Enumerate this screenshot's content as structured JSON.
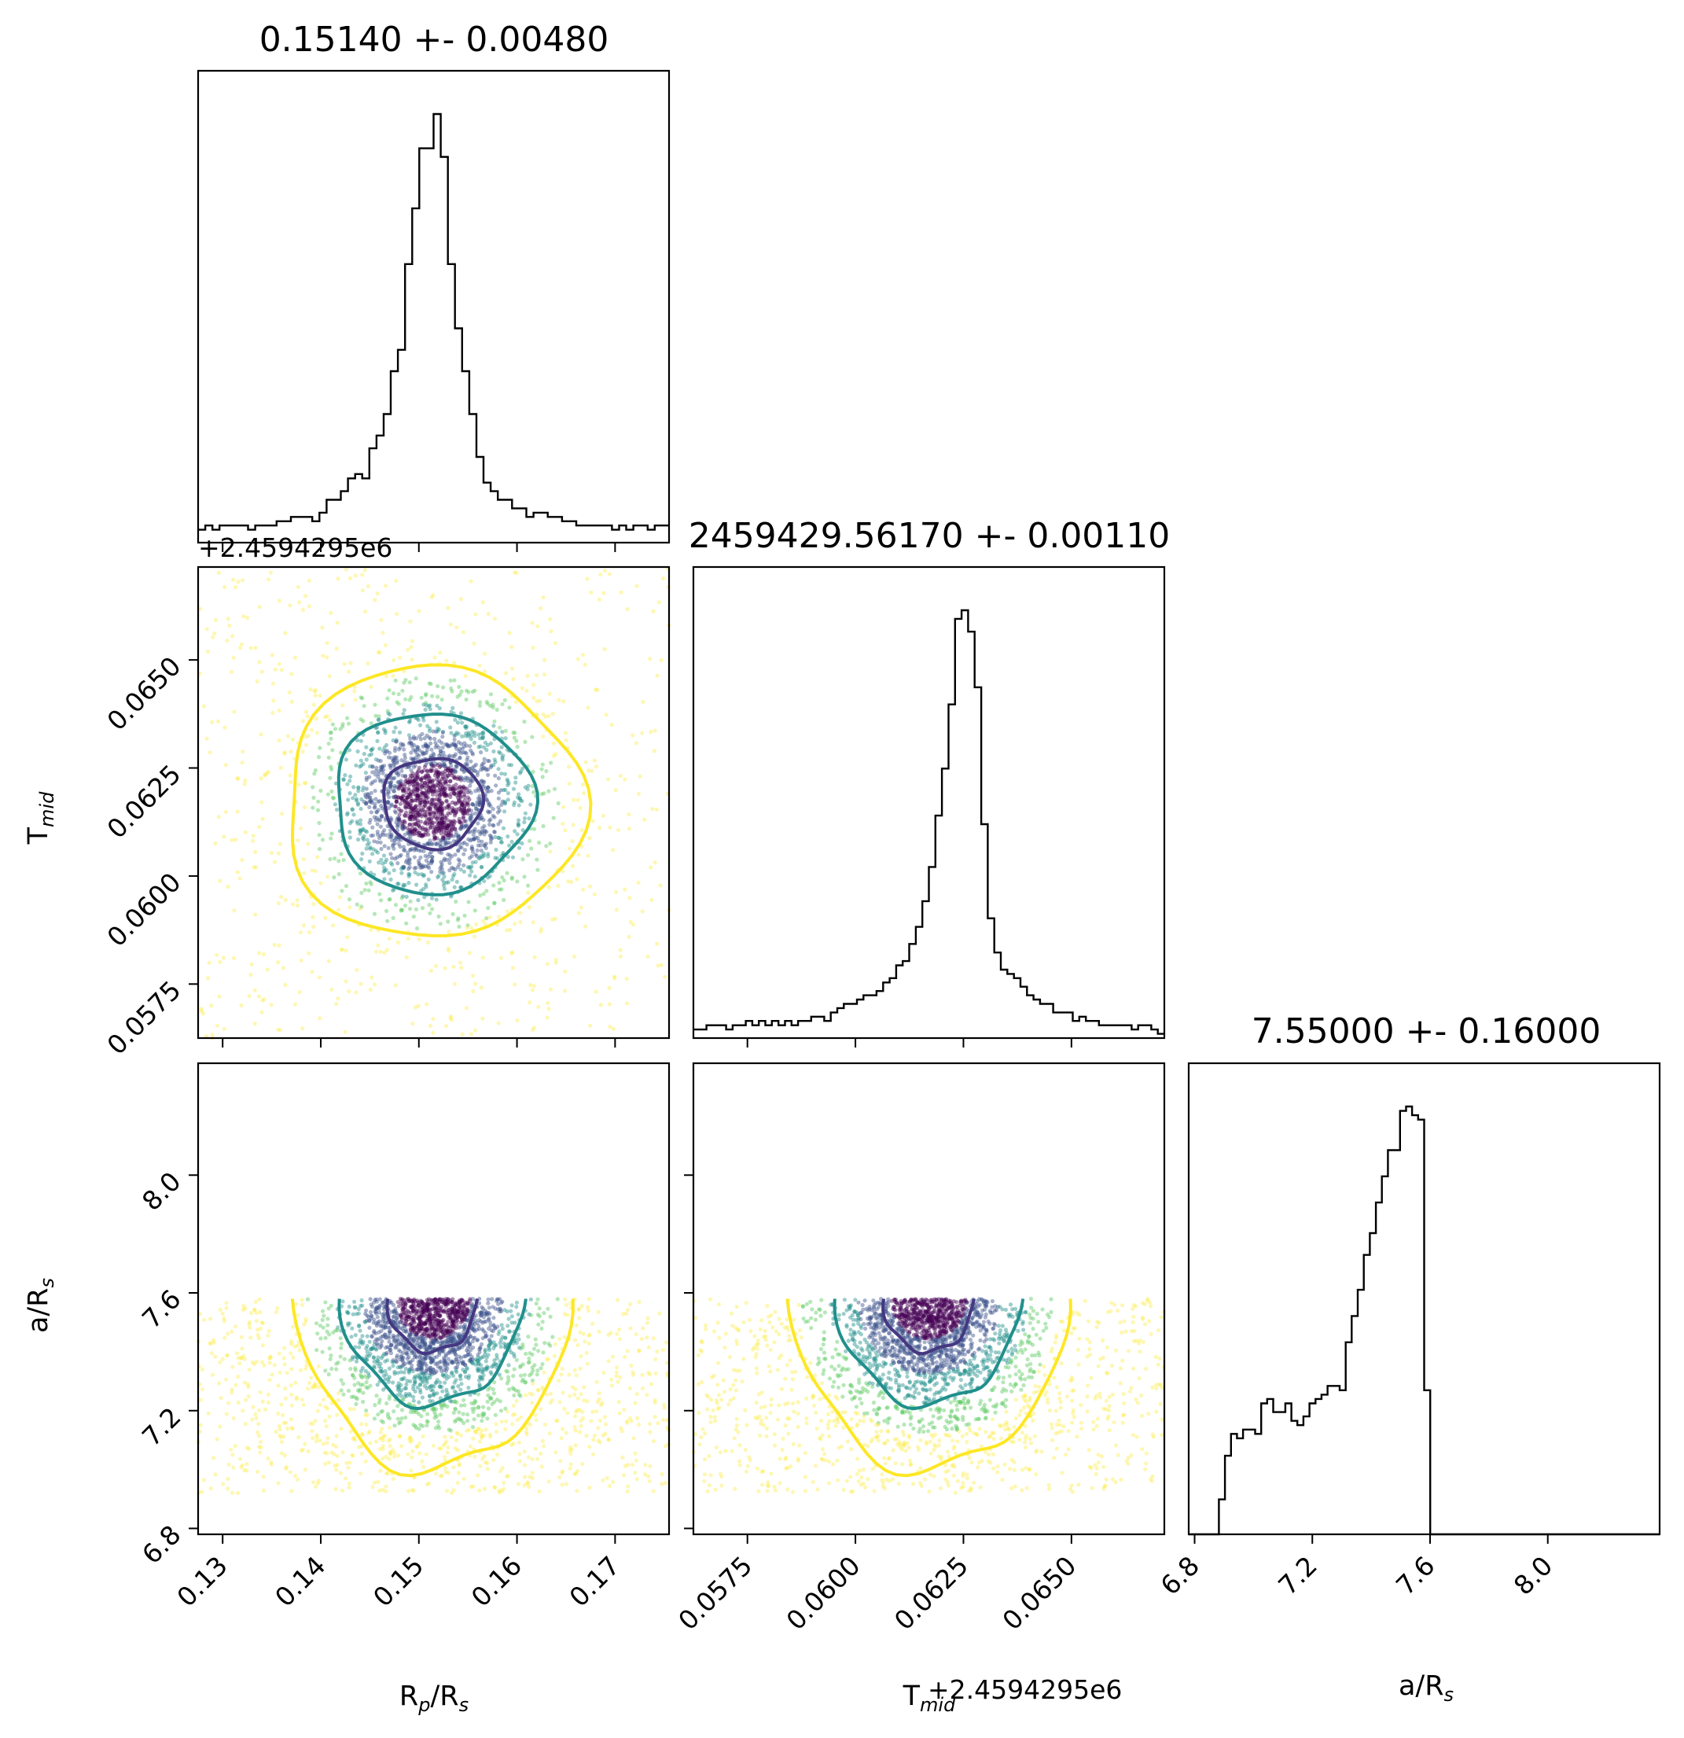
{
  "chart_data": {
    "type": "corner",
    "parameters": [
      {
        "key": "rprs",
        "title": "0.15140 +- 0.00480",
        "xlabel": "R_p/R_s",
        "range": [
          0.1275,
          0.1755
        ],
        "median": 0.1514,
        "sigma": 0.0048,
        "ticks": [
          0.13,
          0.14,
          0.15,
          0.16,
          0.17
        ],
        "tick_labels": [
          "0.13",
          "0.14",
          "0.15",
          "0.16",
          "0.17"
        ]
      },
      {
        "key": "tmid",
        "title": "2459429.56170 +- 0.00110",
        "xlabel": "T_mid",
        "ylabel": "T_mid",
        "offset": "+2.4594295e6",
        "range": [
          0.05625,
          0.06715
        ],
        "median": 0.0617,
        "sigma": 0.0011,
        "ticks": [
          0.0575,
          0.06,
          0.0625,
          0.065
        ],
        "tick_labels": [
          "0.0575",
          "0.0600",
          "0.0625",
          "0.0650"
        ]
      },
      {
        "key": "ars",
        "title": "7.55000 +- 0.16000",
        "xlabel": "a/R_s",
        "ylabel": "a/R_s",
        "range": [
          6.78,
          8.38
        ],
        "median": 7.55,
        "sigma": 0.16,
        "ticks": [
          6.8,
          7.2,
          7.6,
          8.0
        ],
        "tick_labels": [
          "6.8",
          "7.2",
          "7.6",
          "8.0"
        ]
      }
    ],
    "histograms": {
      "rprs": [
        3,
        4,
        3,
        4,
        4,
        4,
        4,
        3,
        4,
        4,
        4,
        5,
        5,
        6,
        6,
        6,
        5,
        7,
        10,
        10,
        12,
        15,
        16,
        15,
        22,
        25,
        30,
        40,
        45,
        65,
        78,
        92,
        92,
        100,
        90,
        65,
        50,
        40,
        30,
        20,
        14,
        12,
        10,
        10,
        8,
        8,
        6,
        7,
        7,
        6,
        6,
        5,
        5,
        4,
        4,
        4,
        4,
        4,
        3,
        4,
        3,
        4,
        4,
        3,
        4,
        4
      ],
      "tmid": [
        2,
        2,
        3,
        3,
        3,
        2,
        3,
        3,
        4,
        3,
        4,
        3,
        4,
        3,
        4,
        3,
        4,
        4,
        5,
        5,
        4,
        6,
        7,
        8,
        8,
        9,
        10,
        10,
        11,
        13,
        14,
        17,
        18,
        22,
        26,
        32,
        40,
        52,
        63,
        78,
        98,
        100,
        95,
        82,
        50,
        28,
        20,
        16,
        15,
        14,
        12,
        10,
        9,
        8,
        8,
        6,
        6,
        6,
        4,
        5,
        4,
        4,
        3,
        3,
        3,
        3,
        3,
        2,
        3,
        3,
        2,
        1
      ],
      "ars": [
        0,
        0,
        0,
        0,
        0,
        8,
        18,
        23,
        22,
        24,
        24,
        23,
        30,
        31,
        28,
        28,
        30,
        26,
        25,
        27,
        30,
        31,
        32,
        34,
        34,
        33,
        44,
        50,
        56,
        64,
        69,
        76,
        82,
        88,
        88,
        97,
        98,
        96,
        95,
        33,
        0,
        0,
        0,
        0,
        0,
        0,
        0,
        0,
        0,
        0,
        0,
        0,
        0,
        0,
        0,
        0,
        0,
        0,
        0,
        0,
        0,
        0,
        0,
        0,
        0,
        0,
        0,
        0,
        0,
        0,
        0,
        0,
        0,
        0,
        0,
        0,
        0,
        0
      ]
    },
    "scatter_colors": [
      "#440154",
      "#3b528b",
      "#21918c",
      "#5ec962",
      "#fde725"
    ],
    "contour_colors": [
      "#453781",
      "#218f8c",
      "#fde725"
    ],
    "contour_levels_sigma": [
      1,
      2,
      3
    ],
    "ars_upper_bound": 7.58,
    "ars_lower_bound": 6.92,
    "grid": false
  }
}
